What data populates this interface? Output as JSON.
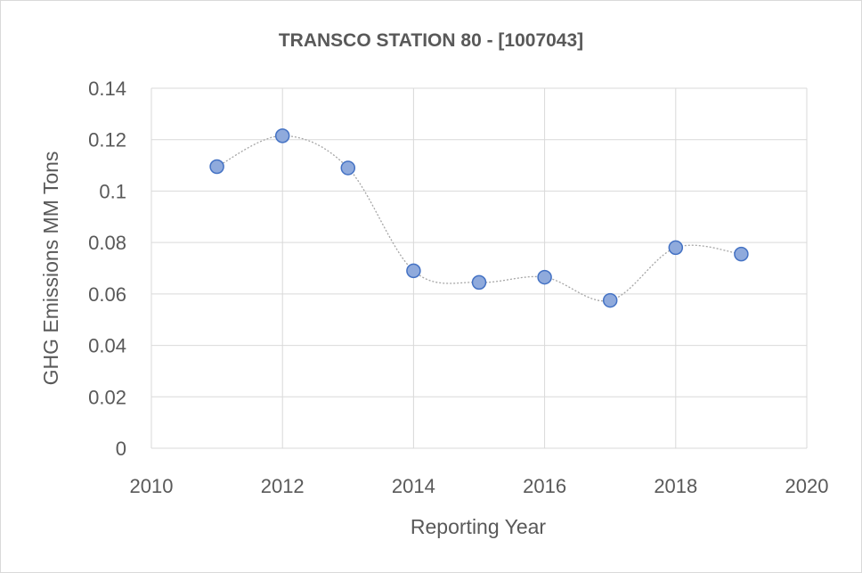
{
  "chart_data": {
    "type": "scatter",
    "title": "TRANSCO STATION 80 - [1007043]",
    "xlabel": "Reporting Year",
    "ylabel": "GHG Emissions MM Tons",
    "xlim": [
      2010,
      2020
    ],
    "ylim": [
      0,
      0.14
    ],
    "x_ticks": [
      "2010",
      "2012",
      "2014",
      "2016",
      "2018",
      "2020"
    ],
    "y_ticks": [
      "0",
      "0.02",
      "0.04",
      "0.06",
      "0.08",
      "0.1",
      "0.12",
      "0.14"
    ],
    "grid": true,
    "legend": "none",
    "smoothed_dotted_line": true,
    "marker_color": "#8faadc",
    "marker_edge_color": "#4472c4",
    "line_color": "#a6a6a6",
    "series": [
      {
        "x": [
          2011,
          2012,
          2013,
          2014,
          2015,
          2016,
          2017,
          2018,
          2019
        ],
        "y": [
          0.1095,
          0.1215,
          0.109,
          0.069,
          0.0645,
          0.0665,
          0.0575,
          0.078,
          0.0755
        ]
      }
    ]
  }
}
